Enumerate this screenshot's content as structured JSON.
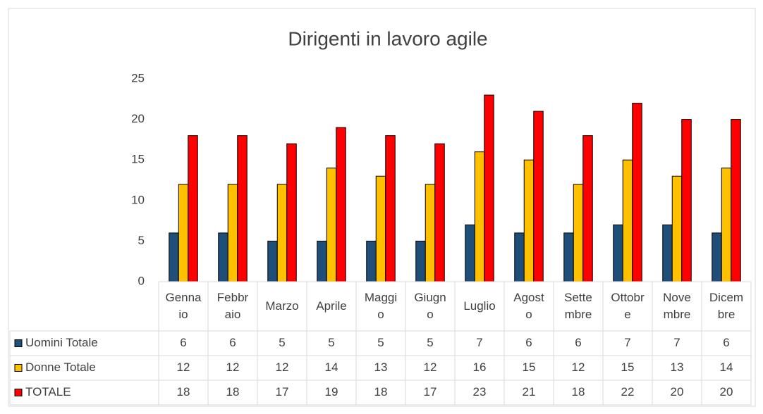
{
  "chart_data": {
    "type": "bar",
    "title": "Dirigenti in lavoro agile",
    "categories": [
      "Gennaio",
      "Febbraio",
      "Marzo",
      "Aprile",
      "Maggio",
      "Giugno",
      "Luglio",
      "Agosto",
      "Settembre",
      "Ottobre",
      "Novembre",
      "Dicembre"
    ],
    "series": [
      {
        "name": "Uomini Totale",
        "color": "#1f4e79",
        "values": [
          6,
          6,
          5,
          5,
          5,
          5,
          7,
          6,
          6,
          7,
          7,
          6
        ]
      },
      {
        "name": "Donne Totale",
        "color": "#ffc000",
        "values": [
          12,
          12,
          12,
          14,
          13,
          12,
          16,
          15,
          12,
          15,
          13,
          14
        ]
      },
      {
        "name": "TOTALE",
        "color": "#ff0000",
        "values": [
          18,
          18,
          17,
          19,
          18,
          17,
          23,
          21,
          18,
          22,
          20,
          20
        ]
      }
    ],
    "ylim": [
      0,
      25
    ],
    "yticks": [
      0,
      5,
      10,
      15,
      20,
      25
    ],
    "grid": false
  }
}
